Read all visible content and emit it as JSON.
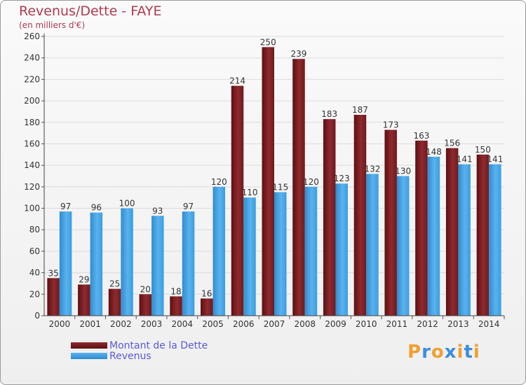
{
  "header": {
    "title": "Revenus/Dette - FAYE",
    "subtitle": "(en milliers d'€)"
  },
  "legend": {
    "items": [
      {
        "label": "Montant de la Dette",
        "color": "#7a1e22"
      },
      {
        "label": "Revenus",
        "color": "#3a9ee0"
      }
    ]
  },
  "logo": {
    "text": "Proxiti",
    "letters": [
      "P",
      "r",
      "o",
      "x",
      "i",
      "t",
      "i"
    ],
    "colors": [
      "#f0a030",
      "#3a8de0",
      "#f0a030",
      "#3a8de0",
      "#f0a030",
      "#3a8de0",
      "#f0a030"
    ]
  },
  "chart_data": {
    "type": "bar",
    "title": "Revenus/Dette - FAYE",
    "subtitle": "(en milliers d'€)",
    "categories": [
      "2000",
      "2001",
      "2002",
      "2003",
      "2004",
      "2005",
      "2006",
      "2007",
      "2008",
      "2009",
      "2010",
      "2011",
      "2012",
      "2013",
      "2014"
    ],
    "series": [
      {
        "name": "Montant de la Dette",
        "color": "#7a1e22",
        "values": [
          35,
          29,
          25,
          20,
          18,
          16,
          214,
          250,
          239,
          183,
          187,
          173,
          163,
          156,
          150
        ]
      },
      {
        "name": "Revenus",
        "color": "#3a9ee0",
        "values": [
          97,
          96,
          100,
          93,
          97,
          120,
          110,
          115,
          120,
          123,
          132,
          130,
          148,
          141,
          141
        ]
      }
    ],
    "ylim": [
      0,
      260
    ],
    "yticks": [
      0,
      20,
      40,
      60,
      80,
      100,
      120,
      140,
      160,
      180,
      200,
      220,
      240,
      260
    ],
    "grid": true,
    "legend_position": "bottom-left"
  }
}
